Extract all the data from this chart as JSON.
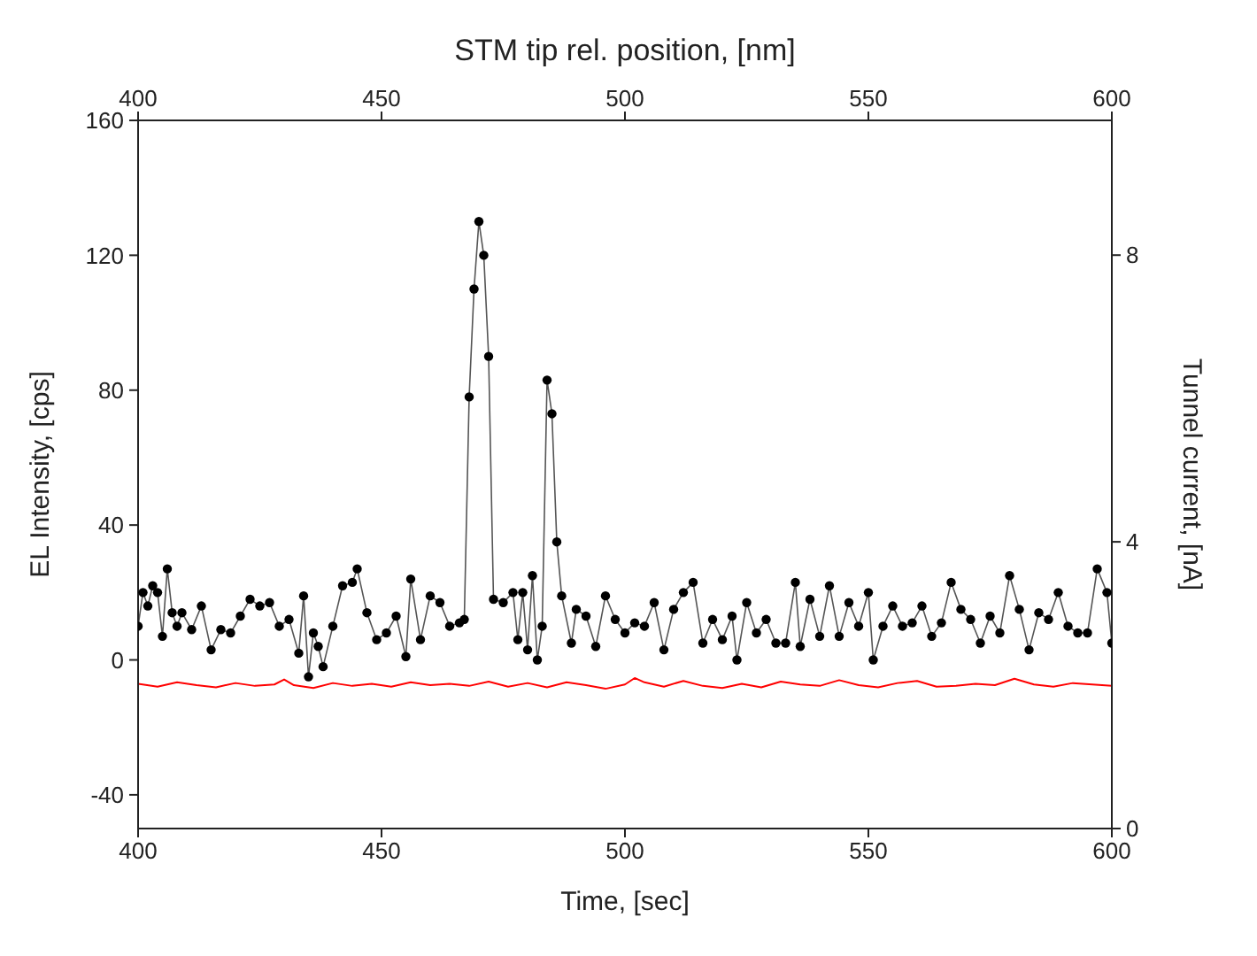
{
  "chart_data": {
    "type": "line",
    "xlabel": "Time, [sec]",
    "ylabel": "EL Intensity, [cps]",
    "y2label": "Tunnel current, [nA]",
    "x2label": "STM tip rel. position, [nm]",
    "xlim": [
      400,
      600
    ],
    "xticks": [
      400,
      450,
      500,
      550,
      600
    ],
    "x2lim": [
      400,
      600
    ],
    "x2ticks": [
      400,
      450,
      500,
      550,
      600
    ],
    "ylim": [
      -50,
      160
    ],
    "yticks": [
      -40,
      0,
      40,
      80,
      120,
      160
    ],
    "y2lim": [
      0,
      9.88
    ],
    "y2ticks": [
      0,
      4,
      8
    ],
    "grid": false,
    "legend": false,
    "series": [
      {
        "color": "#000000",
        "marker": "circle",
        "x": [
          400,
          401,
          402,
          403,
          404,
          405,
          406,
          407,
          408,
          409,
          411,
          413,
          415,
          417,
          419,
          421,
          423,
          425,
          427,
          429,
          431,
          433,
          434,
          435,
          436,
          437,
          438,
          440,
          442,
          444,
          445,
          447,
          449,
          451,
          453,
          455,
          456,
          458,
          460,
          462,
          464,
          466,
          467,
          468,
          469,
          470,
          471,
          472,
          473,
          475,
          477,
          478,
          479,
          480,
          481,
          482,
          483,
          484,
          485,
          486,
          487,
          489,
          490,
          492,
          494,
          496,
          498,
          500,
          502,
          504,
          506,
          508,
          510,
          512,
          514,
          516,
          518,
          520,
          522,
          523,
          525,
          527,
          529,
          531,
          533,
          535,
          536,
          538,
          540,
          542,
          544,
          546,
          548,
          550,
          551,
          553,
          555,
          557,
          559,
          561,
          563,
          565,
          567,
          569,
          571,
          573,
          575,
          577,
          579,
          581,
          583,
          585,
          587,
          589,
          591,
          593,
          595,
          597,
          599,
          600
        ],
        "values": [
          10,
          20,
          16,
          22,
          20,
          7,
          27,
          14,
          10,
          14,
          9,
          16,
          3,
          9,
          8,
          13,
          18,
          16,
          17,
          10,
          12,
          2,
          19,
          -5,
          8,
          4,
          -2,
          10,
          22,
          23,
          27,
          14,
          6,
          8,
          13,
          1,
          24,
          6,
          19,
          17,
          10,
          11,
          12,
          78,
          110,
          130,
          120,
          90,
          18,
          17,
          20,
          6,
          20,
          3,
          25,
          0,
          10,
          83,
          73,
          35,
          19,
          5,
          15,
          13,
          4,
          19,
          12,
          8,
          11,
          10,
          17,
          3,
          15,
          20,
          23,
          5,
          12,
          6,
          13,
          0,
          17,
          8,
          12,
          5,
          5,
          23,
          4,
          18,
          7,
          22,
          7,
          17,
          10,
          20,
          0,
          10,
          16,
          10,
          11,
          16,
          7,
          11,
          23,
          15,
          12,
          5,
          13,
          8,
          25,
          15,
          3,
          14,
          12,
          20,
          10,
          8,
          8,
          27,
          20,
          5
        ]
      },
      {
        "color": "#ff0000",
        "axis": "y2",
        "marker": "none",
        "x": [
          400,
          404,
          408,
          412,
          416,
          420,
          424,
          428,
          430,
          432,
          436,
          440,
          444,
          448,
          452,
          456,
          460,
          464,
          468,
          472,
          476,
          480,
          484,
          488,
          492,
          496,
          500,
          502,
          504,
          508,
          512,
          516,
          520,
          524,
          528,
          532,
          536,
          540,
          544,
          548,
          552,
          556,
          560,
          564,
          568,
          572,
          576,
          580,
          584,
          588,
          592,
          596,
          600
        ],
        "values": [
          2.02,
          1.98,
          2.04,
          2.0,
          1.97,
          2.03,
          1.99,
          2.01,
          2.08,
          2.0,
          1.96,
          2.03,
          1.99,
          2.02,
          1.98,
          2.04,
          2.0,
          2.02,
          1.99,
          2.05,
          1.98,
          2.03,
          1.97,
          2.04,
          2.0,
          1.95,
          2.01,
          2.1,
          2.04,
          1.98,
          2.06,
          1.99,
          1.96,
          2.02,
          1.97,
          2.05,
          2.01,
          1.99,
          2.07,
          2.0,
          1.97,
          2.03,
          2.06,
          1.98,
          1.99,
          2.02,
          2.0,
          2.09,
          2.01,
          1.98,
          2.03,
          2.01,
          1.99
        ]
      }
    ]
  }
}
